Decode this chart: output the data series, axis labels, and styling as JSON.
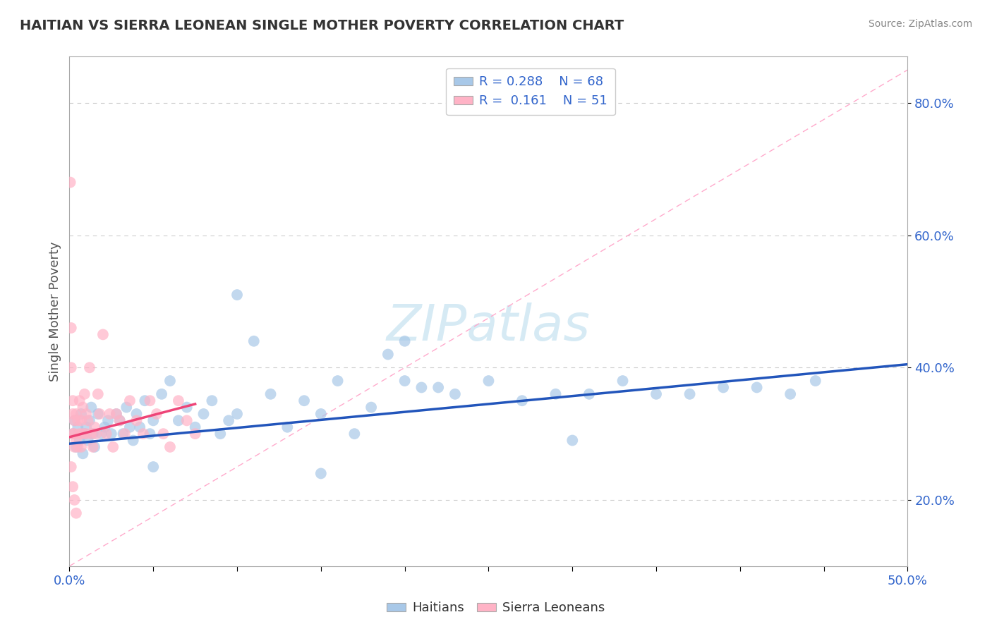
{
  "title": "HAITIAN VS SIERRA LEONEAN SINGLE MOTHER POVERTY CORRELATION CHART",
  "source": "Source: ZipAtlas.com",
  "ylabel": "Single Mother Poverty",
  "blue_color": "#A8C8E8",
  "pink_color": "#FFB3C6",
  "blue_line_color": "#2255BB",
  "pink_line_color": "#EE4477",
  "ref_line_color": "#FFAACC",
  "xlim": [
    0.0,
    0.5
  ],
  "ylim": [
    0.1,
    0.87
  ],
  "yticks": [
    0.2,
    0.4,
    0.6,
    0.8
  ],
  "ytick_labels": [
    "20.0%",
    "40.0%",
    "60.0%",
    "80.0%"
  ],
  "watermark": "ZIPatlas",
  "background_color": "#FFFFFF",
  "blue_x": [
    0.002,
    0.003,
    0.004,
    0.005,
    0.006,
    0.007,
    0.008,
    0.009,
    0.01,
    0.011,
    0.012,
    0.013,
    0.014,
    0.015,
    0.017,
    0.019,
    0.021,
    0.023,
    0.025,
    0.028,
    0.03,
    0.032,
    0.034,
    0.036,
    0.038,
    0.04,
    0.042,
    0.045,
    0.048,
    0.05,
    0.055,
    0.06,
    0.065,
    0.07,
    0.075,
    0.08,
    0.085,
    0.09,
    0.095,
    0.1,
    0.11,
    0.12,
    0.13,
    0.14,
    0.15,
    0.16,
    0.17,
    0.18,
    0.19,
    0.2,
    0.21,
    0.22,
    0.23,
    0.25,
    0.27,
    0.29,
    0.31,
    0.33,
    0.35,
    0.37,
    0.39,
    0.41,
    0.43,
    0.445,
    0.1,
    0.2,
    0.05,
    0.3,
    0.15
  ],
  "blue_y": [
    0.3,
    0.32,
    0.28,
    0.31,
    0.29,
    0.33,
    0.27,
    0.3,
    0.31,
    0.29,
    0.32,
    0.34,
    0.3,
    0.28,
    0.33,
    0.3,
    0.31,
    0.32,
    0.3,
    0.33,
    0.32,
    0.3,
    0.34,
    0.31,
    0.29,
    0.33,
    0.31,
    0.35,
    0.3,
    0.32,
    0.36,
    0.38,
    0.32,
    0.34,
    0.31,
    0.33,
    0.35,
    0.3,
    0.32,
    0.33,
    0.44,
    0.36,
    0.31,
    0.35,
    0.33,
    0.38,
    0.3,
    0.34,
    0.42,
    0.38,
    0.37,
    0.37,
    0.36,
    0.38,
    0.35,
    0.36,
    0.36,
    0.38,
    0.36,
    0.36,
    0.37,
    0.37,
    0.36,
    0.38,
    0.51,
    0.44,
    0.25,
    0.29,
    0.24
  ],
  "pink_x": [
    0.0005,
    0.001,
    0.001,
    0.002,
    0.002,
    0.002,
    0.003,
    0.003,
    0.003,
    0.004,
    0.004,
    0.005,
    0.005,
    0.006,
    0.006,
    0.007,
    0.007,
    0.008,
    0.008,
    0.009,
    0.01,
    0.01,
    0.011,
    0.012,
    0.013,
    0.014,
    0.015,
    0.016,
    0.017,
    0.018,
    0.02,
    0.022,
    0.024,
    0.026,
    0.028,
    0.03,
    0.033,
    0.036,
    0.04,
    0.044,
    0.048,
    0.052,
    0.056,
    0.06,
    0.065,
    0.07,
    0.075,
    0.001,
    0.002,
    0.003,
    0.004
  ],
  "pink_y": [
    0.68,
    0.46,
    0.4,
    0.35,
    0.3,
    0.33,
    0.28,
    0.32,
    0.3,
    0.29,
    0.33,
    0.28,
    0.32,
    0.3,
    0.35,
    0.28,
    0.32,
    0.3,
    0.34,
    0.36,
    0.3,
    0.33,
    0.32,
    0.4,
    0.3,
    0.28,
    0.31,
    0.3,
    0.36,
    0.33,
    0.45,
    0.3,
    0.33,
    0.28,
    0.33,
    0.32,
    0.3,
    0.35,
    0.32,
    0.3,
    0.35,
    0.33,
    0.3,
    0.28,
    0.35,
    0.32,
    0.3,
    0.25,
    0.22,
    0.2,
    0.18
  ],
  "blue_trend_x": [
    0.0,
    0.5
  ],
  "blue_trend_y": [
    0.285,
    0.405
  ],
  "pink_trend_x": [
    0.0,
    0.075
  ],
  "pink_trend_y": [
    0.295,
    0.345
  ],
  "ref_line_x": [
    0.0,
    0.5
  ],
  "ref_line_y": [
    0.1,
    0.85
  ]
}
